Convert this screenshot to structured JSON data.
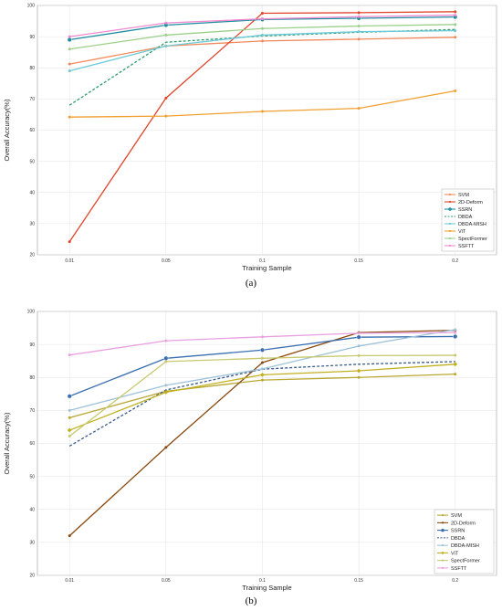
{
  "chart_data": [
    {
      "type": "line",
      "caption": "(a)",
      "xlabel": "Training Sample",
      "ylabel": "Overall Accuracy(%)",
      "categories": [
        "0.01",
        "0.05",
        "0.1",
        "0.15",
        "0.2"
      ],
      "ylim": [
        20,
        100
      ],
      "yticks": [
        20,
        30,
        40,
        50,
        60,
        70,
        80,
        90,
        100
      ],
      "grid": true,
      "legend_position": "bottom-right",
      "series": [
        {
          "name": "SVM",
          "color": "#f08a5b",
          "marker": "dot",
          "values": [
            81.2,
            87.0,
            88.6,
            89.2,
            89.8
          ]
        },
        {
          "name": "2D-Deform",
          "color": "#e0452a",
          "marker": "dot",
          "values": [
            24.2,
            70.3,
            97.5,
            97.7,
            98.0
          ]
        },
        {
          "name": "SSRN",
          "color": "#1f8ea0",
          "marker": "circle",
          "values": [
            89.0,
            93.7,
            95.5,
            95.9,
            96.3
          ]
        },
        {
          "name": "DBDA",
          "color": "#2e9c6a",
          "marker": "none",
          "dashed": true,
          "values": [
            68.0,
            88.2,
            90.2,
            91.4,
            92.3
          ]
        },
        {
          "name": "DBDA-MISH",
          "color": "#6ec9d6",
          "marker": "dot",
          "values": [
            79.0,
            87.0,
            90.5,
            91.6,
            91.9
          ]
        },
        {
          "name": "ViT",
          "color": "#f0a030",
          "marker": "dot",
          "values": [
            64.2,
            64.5,
            66.0,
            67.0,
            72.6
          ]
        },
        {
          "name": "SpectFormer",
          "color": "#9ccf8a",
          "marker": "dot",
          "values": [
            86.0,
            90.5,
            92.6,
            93.4,
            93.9
          ]
        },
        {
          "name": "SSFTT",
          "color": "#f08ad0",
          "marker": "dot",
          "values": [
            90.0,
            94.4,
            95.7,
            96.4,
            96.9
          ]
        }
      ]
    },
    {
      "type": "line",
      "caption": "(b)",
      "xlabel": "Training Sample",
      "ylabel": "Overall Accuracy(%)",
      "categories": [
        "0.01",
        "0.05",
        "0.1",
        "0.15",
        "0.2"
      ],
      "ylim": [
        20,
        100
      ],
      "yticks": [
        20,
        30,
        40,
        50,
        60,
        70,
        80,
        90,
        100
      ],
      "grid": true,
      "legend_position": "bottom-right",
      "series": [
        {
          "name": "SVM",
          "color": "#b8a832",
          "marker": "dot",
          "values": [
            67.8,
            75.8,
            79.2,
            80.0,
            81.0
          ]
        },
        {
          "name": "2D-Deform",
          "color": "#8a4a10",
          "marker": "dot",
          "values": [
            32.0,
            58.8,
            84.5,
            93.6,
            94.3
          ]
        },
        {
          "name": "SSRN",
          "color": "#3a6fb0",
          "marker": "circle",
          "values": [
            74.3,
            85.8,
            88.3,
            92.2,
            92.4
          ]
        },
        {
          "name": "DBDA",
          "color": "#3a5a8a",
          "marker": "none",
          "dashed": true,
          "values": [
            59.2,
            76.2,
            82.5,
            84.0,
            84.8
          ]
        },
        {
          "name": "DBDA-MISH",
          "color": "#9fc2d8",
          "marker": "dot",
          "values": [
            70.0,
            77.6,
            82.6,
            89.5,
            94.5
          ]
        },
        {
          "name": "ViT",
          "color": "#c0b020",
          "marker": "diamond",
          "values": [
            64.0,
            75.5,
            80.8,
            82.0,
            84.0
          ]
        },
        {
          "name": "SpectFormer",
          "color": "#c8c870",
          "marker": "dot",
          "values": [
            62.2,
            84.8,
            85.8,
            86.6,
            86.7
          ]
        },
        {
          "name": "SSFTT",
          "color": "#e8a0e0",
          "marker": "dot",
          "values": [
            86.8,
            91.1,
            92.3,
            93.4,
            93.6
          ]
        }
      ]
    }
  ]
}
